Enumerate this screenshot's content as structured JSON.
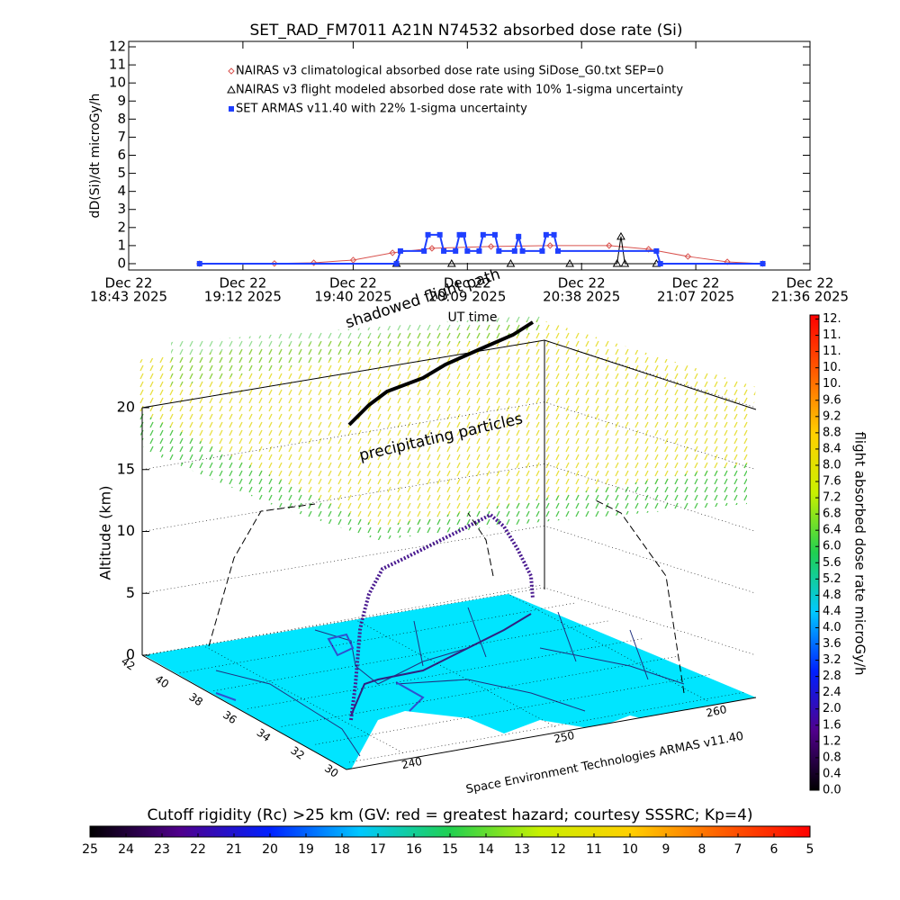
{
  "chart_data": [
    {
      "type": "line",
      "title": "SET_RAD_FM7011  A21N N74532 absorbed dose rate (Si)",
      "y_label": "dD(Si)/dt microGy/h",
      "x_label": "UT time",
      "xlim": [
        "2025-12-22 18:43",
        "2025-12-22 21:36"
      ],
      "xticks": [
        {
          "value": "2025-12-22 18:43",
          "label": [
            "Dec 22",
            "18:43 2025"
          ]
        },
        {
          "value": "2025-12-22 19:12",
          "label": [
            "Dec 22",
            "19:12 2025"
          ]
        },
        {
          "value": "2025-12-22 19:40",
          "label": [
            "Dec 22",
            "19:40 2025"
          ]
        },
        {
          "value": "2025-12-22 20:09",
          "label": [
            "Dec 22",
            "20:09 2025"
          ]
        },
        {
          "value": "2025-12-22 20:38",
          "label": [
            "Dec 22",
            "20:38 2025"
          ]
        },
        {
          "value": "2025-12-22 21:07",
          "label": [
            "Dec 22",
            "21:07 2025"
          ]
        },
        {
          "value": "2025-12-22 21:36",
          "label": [
            "Dec 22",
            "21:36 2025"
          ]
        }
      ],
      "ylim": [
        -0.35,
        12.3
      ],
      "yticks": [
        0,
        1,
        2,
        3,
        4,
        5,
        6,
        7,
        8,
        9,
        10,
        11,
        12
      ],
      "series": [
        {
          "name": "NAIRAS v3 climatological absorbed dose rate using SiDose_G0.txt SEP=0",
          "color": "#d9534f",
          "marker": "diamond",
          "x": [
            "2025-12-22 19:01",
            "2025-12-22 19:20",
            "2025-12-22 19:30",
            "2025-12-22 19:40",
            "2025-12-22 19:50",
            "2025-12-22 20:00",
            "2025-12-22 20:15",
            "2025-12-22 20:30",
            "2025-12-22 20:45",
            "2025-12-22 20:55",
            "2025-12-22 21:05",
            "2025-12-22 21:15",
            "2025-12-22 21:24"
          ],
          "values": [
            0,
            0.01,
            0.05,
            0.2,
            0.6,
            0.85,
            0.95,
            1.0,
            1.0,
            0.8,
            0.4,
            0.1,
            0
          ]
        },
        {
          "name": "NAIRAS v3 flight modeled absorbed dose rate with 10% 1-sigma uncertainty",
          "color": "#000000",
          "marker": "triangle",
          "x": [
            "2025-12-22 19:51",
            "2025-12-22 20:05",
            "2025-12-22 20:20",
            "2025-12-22 20:35",
            "2025-12-22 20:47",
            "2025-12-22 20:48",
            "2025-12-22 20:49",
            "2025-12-22 20:57"
          ],
          "values": [
            0,
            0,
            0,
            0,
            0,
            1.5,
            0,
            0
          ]
        },
        {
          "name": "SET ARMAS v11.40 with 22% 1-sigma uncertainty",
          "color": "#1f3fff",
          "marker": "square",
          "x": [
            "2025-12-22 19:01",
            "2025-12-22 19:51",
            "2025-12-22 19:52",
            "2025-12-22 19:58",
            "2025-12-22 19:59",
            "2025-12-22 20:02",
            "2025-12-22 20:03",
            "2025-12-22 20:06",
            "2025-12-22 20:07",
            "2025-12-22 20:08",
            "2025-12-22 20:09",
            "2025-12-22 20:12",
            "2025-12-22 20:13",
            "2025-12-22 20:16",
            "2025-12-22 20:17",
            "2025-12-22 20:21",
            "2025-12-22 20:22",
            "2025-12-22 20:23",
            "2025-12-22 20:28",
            "2025-12-22 20:29",
            "2025-12-22 20:31",
            "2025-12-22 20:32",
            "2025-12-22 20:57",
            "2025-12-22 20:58",
            "2025-12-22 21:24"
          ],
          "values": [
            0,
            0,
            0.7,
            0.7,
            1.6,
            1.6,
            0.7,
            0.7,
            1.6,
            1.6,
            0.7,
            0.7,
            1.6,
            1.6,
            0.7,
            0.7,
            1.5,
            0.7,
            0.7,
            1.6,
            1.6,
            0.7,
            0.7,
            0,
            0
          ]
        }
      ]
    },
    {
      "type": "3d-trajectory",
      "z_label": "Altitude (km)",
      "zlim": [
        0,
        20
      ],
      "zticks": [
        0,
        5,
        10,
        15,
        20
      ],
      "latlim": [
        30,
        42
      ],
      "lat_ticks": [
        42,
        40,
        38,
        36,
        34,
        32,
        30
      ],
      "lonlim": [
        236,
        262
      ],
      "lon_ticks": [
        240,
        250,
        260
      ],
      "annotations": [
        "shadowed flight path",
        "precipitating particles"
      ],
      "credit": "Space Environment Technologies ARMAS v11.40"
    },
    {
      "type": "colorbar",
      "orientation": "vertical",
      "title": "flight absorbed dose rate microGy/h",
      "lim": [
        0,
        11.7
      ],
      "colors": [
        "#000000",
        "#50008c",
        "#0020ff",
        "#00c8ff",
        "#20d050",
        "#c8f000",
        "#ffd000",
        "#ff6000",
        "#ff0000"
      ],
      "ticks": [
        {
          "value": 0,
          "label": "0.0"
        },
        0.4,
        0.8,
        1.2,
        1.6,
        {
          "value": 2,
          "label": "2.0"
        },
        2.4,
        2.8,
        3.2,
        3.6,
        {
          "value": 4,
          "label": "4.0"
        },
        4.4,
        4.8,
        5.2,
        5.6,
        {
          "value": 6,
          "label": "6.0"
        },
        6.4,
        6.8,
        7.2,
        7.6,
        {
          "value": 8,
          "label": "8.0"
        },
        8.4,
        8.8,
        9.2,
        9.6,
        {
          "value": 10,
          "label": "10."
        },
        {
          "value": 10.4,
          "label": "10."
        },
        {
          "value": 10.8,
          "label": "11."
        },
        {
          "value": 11.2,
          "label": "11."
        },
        {
          "value": 11.6,
          "label": "12."
        }
      ]
    },
    {
      "type": "colorbar",
      "orientation": "horizontal",
      "title": "Cutoff rigidity (Rc) >25 km (GV: red = greatest hazard; courtesy SSSRC; Kp=4)",
      "lim": [
        25,
        5
      ],
      "colors": [
        "#000000",
        "#50008c",
        "#0020ff",
        "#00c8ff",
        "#20d050",
        "#c8f000",
        "#ffd000",
        "#ff6000",
        "#ff0000"
      ],
      "ticks": [
        25,
        24,
        23,
        22,
        21,
        20,
        19,
        18,
        17,
        16,
        15,
        14,
        13,
        12,
        11,
        10,
        9,
        8,
        7,
        6,
        5
      ]
    }
  ]
}
